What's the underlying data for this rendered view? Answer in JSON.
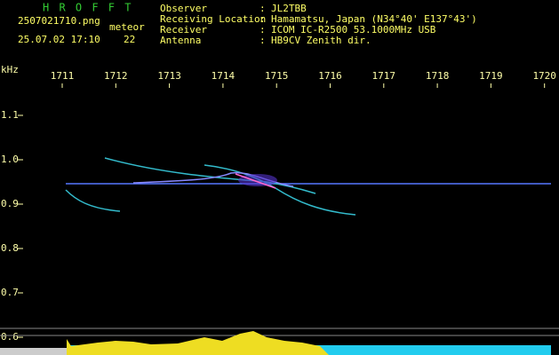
{
  "header": {
    "app": "H R O F F T",
    "file": "2507021710.png",
    "mode": "meteor",
    "datetime": "25.07.02 17:10",
    "count": "22",
    "fields": [
      {
        "label": "Observer",
        "value": "JL2TBB"
      },
      {
        "label": "Receiving Location",
        "value": "Hamamatsu, Japan (N34°40' E137°43')"
      },
      {
        "label": "Receiver",
        "value": "ICOM IC-R2500 53.1000MHz USB"
      },
      {
        "label": "Antenna",
        "value": "HB9CV Zenith dir."
      }
    ]
  },
  "x_axis": {
    "ticks": [
      "1711",
      "1712",
      "1713",
      "1714",
      "1715",
      "1716",
      "1717",
      "1718",
      "1719",
      "1720"
    ]
  },
  "y_axis": {
    "unit": "kHz",
    "ticks": [
      "1.1",
      "1.0",
      "0.9",
      "0.8",
      "0.7",
      "0.6"
    ]
  }
}
